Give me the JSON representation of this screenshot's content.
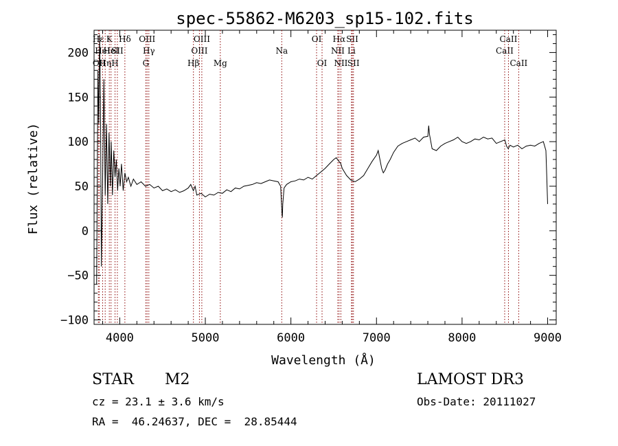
{
  "chart_data": {
    "type": "line",
    "title": "spec-55862-M6203_sp15-102.fits",
    "xlabel": "Wavelength (Å)",
    "ylabel": "Flux (relative)",
    "xlim": [
      3700,
      9100
    ],
    "ylim": [
      -105,
      225
    ],
    "xticks": [
      4000,
      5000,
      6000,
      7000,
      8000,
      9000
    ],
    "yticks": [
      -100,
      -50,
      0,
      50,
      100,
      150,
      200
    ],
    "series": [
      {
        "name": "flux",
        "x": [
          3730,
          3745,
          3755,
          3765,
          3775,
          3785,
          3800,
          3815,
          3830,
          3845,
          3860,
          3875,
          3890,
          3900,
          3915,
          3930,
          3945,
          3960,
          3975,
          3990,
          4005,
          4020,
          4040,
          4060,
          4080,
          4100,
          4130,
          4160,
          4200,
          4250,
          4300,
          4350,
          4400,
          4450,
          4500,
          4550,
          4600,
          4650,
          4700,
          4750,
          4800,
          4830,
          4860,
          4880,
          4900,
          4950,
          5000,
          5050,
          5100,
          5150,
          5200,
          5250,
          5300,
          5350,
          5400,
          5450,
          5500,
          5550,
          5600,
          5650,
          5700,
          5750,
          5800,
          5850,
          5880,
          5895,
          5900,
          5905,
          5920,
          5950,
          6000,
          6050,
          6100,
          6150,
          6200,
          6250,
          6300,
          6350,
          6400,
          6450,
          6500,
          6530,
          6560,
          6580,
          6600,
          6650,
          6700,
          6750,
          6800,
          6850,
          6900,
          6950,
          7000,
          7020,
          7040,
          7060,
          7080,
          7100,
          7130,
          7160,
          7200,
          7250,
          7300,
          7350,
          7400,
          7450,
          7500,
          7550,
          7600,
          7610,
          7620,
          7650,
          7700,
          7750,
          7800,
          7850,
          7900,
          7950,
          8000,
          8050,
          8100,
          8150,
          8200,
          8250,
          8300,
          8350,
          8400,
          8450,
          8500,
          8520,
          8540,
          8560,
          8600,
          8650,
          8700,
          8750,
          8800,
          8850,
          8900,
          8950,
          8980,
          8990,
          9000
        ],
        "values": [
          -60,
          180,
          120,
          220,
          150,
          -40,
          60,
          170,
          40,
          120,
          30,
          110,
          50,
          100,
          40,
          90,
          60,
          80,
          45,
          70,
          50,
          75,
          45,
          65,
          55,
          60,
          50,
          58,
          52,
          55,
          50,
          52,
          48,
          50,
          45,
          47,
          44,
          46,
          43,
          45,
          48,
          52,
          45,
          50,
          40,
          42,
          38,
          41,
          40,
          43,
          42,
          46,
          44,
          48,
          47,
          50,
          51,
          52,
          54,
          53,
          55,
          57,
          56,
          55,
          50,
          20,
          15,
          30,
          48,
          52,
          55,
          56,
          58,
          57,
          60,
          58,
          62,
          66,
          70,
          75,
          80,
          82,
          78,
          76,
          70,
          62,
          57,
          55,
          58,
          62,
          70,
          78,
          85,
          90,
          80,
          70,
          65,
          68,
          75,
          80,
          88,
          95,
          98,
          100,
          102,
          104,
          100,
          105,
          106,
          118,
          108,
          92,
          90,
          95,
          98,
          100,
          102,
          105,
          100,
          98,
          100,
          103,
          102,
          105,
          103,
          104,
          98,
          100,
          102,
          95,
          92,
          96,
          94,
          96,
          92,
          95,
          96,
          95,
          98,
          100,
          90,
          60,
          30
        ]
      }
    ],
    "lines": [
      {
        "x": 3750,
        "label": "Hε",
        "row": 1
      },
      {
        "x": 3760,
        "label": "OII",
        "row": 3
      },
      {
        "x": 3800,
        "label": "HeI",
        "row": 2
      },
      {
        "x": 3830,
        "label": "Hη",
        "row": 3
      },
      {
        "x": 3878,
        "label": "K",
        "row": 1
      },
      {
        "x": 3898,
        "label": "HeI",
        "row": 2
      },
      {
        "x": 3945,
        "label": "H",
        "row": 3
      },
      {
        "x": 3972,
        "label": "SII",
        "row": 2
      },
      {
        "x": 4060,
        "label": "Hδ",
        "row": 1
      },
      {
        "x": 4320,
        "label": "OIII",
        "row": 1
      },
      {
        "x": 4340,
        "label": "Hγ",
        "row": 2
      },
      {
        "x": 4305,
        "label": "G",
        "row": 3
      },
      {
        "x": 4861,
        "label": "Hβ",
        "row": 3
      },
      {
        "x": 4959,
        "label": "OIII",
        "row": 1
      },
      {
        "x": 4931,
        "label": "OIII",
        "row": 2
      },
      {
        "x": 5175,
        "label": "Mg",
        "row": 3
      },
      {
        "x": 5893,
        "label": "Na",
        "row": 2
      },
      {
        "x": 6300,
        "label": "OI",
        "row": 1
      },
      {
        "x": 6364,
        "label": "OI",
        "row": 3
      },
      {
        "x": 6563,
        "label": "Hα",
        "row": 1
      },
      {
        "x": 6548,
        "label": "NII",
        "row": 2
      },
      {
        "x": 6584,
        "label": "NII",
        "row": 3
      },
      {
        "x": 6717,
        "label": "SII",
        "row": 1
      },
      {
        "x": 6708,
        "label": "Li",
        "row": 2
      },
      {
        "x": 6731,
        "label": "SII",
        "row": 3
      },
      {
        "x": 8498,
        "label": "CaII",
        "row": 2
      },
      {
        "x": 8542,
        "label": "CaII",
        "row": 1
      },
      {
        "x": 8662,
        "label": "CaII",
        "row": 3
      }
    ],
    "line_color": "#8b0000",
    "grid": false
  },
  "info": {
    "object_class": "STAR",
    "subclass": "M2",
    "survey": "LAMOST DR3",
    "cz": "cz = 23.1 ± 3.6 km/s",
    "obs_date": "Obs-Date: 20111027",
    "coords": "RA =  46.24637, DEC =  28.85444"
  }
}
